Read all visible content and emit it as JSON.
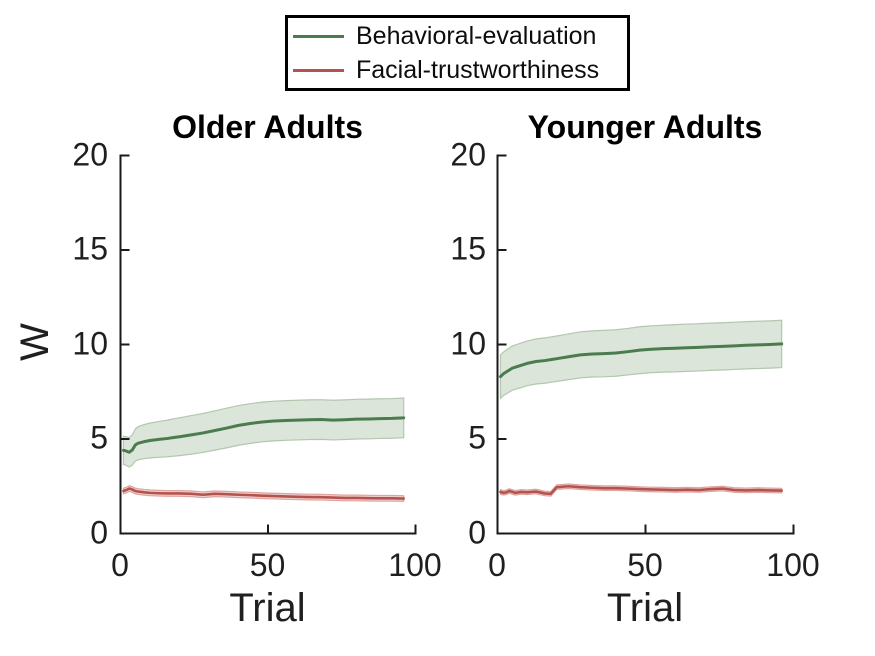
{
  "figure": {
    "background": "#ffffff",
    "axis_color": "#1a1a1a",
    "text_color": "#1f1f1f"
  },
  "legend": {
    "position": "top-center",
    "items": [
      {
        "label": "Behavioral-evaluation",
        "color": "#4a7c4e"
      },
      {
        "label": "Facial-trustworthiness",
        "color": "#b4534e"
      }
    ]
  },
  "chart_data": [
    {
      "type": "line",
      "title": "Older Adults",
      "xlabel": "Trial",
      "ylabel": "W",
      "xlim": [
        0,
        100
      ],
      "ylim": [
        0,
        20
      ],
      "xticks": [
        0,
        50,
        100
      ],
      "yticks": [
        0,
        5,
        10,
        15,
        20
      ],
      "grid": false,
      "x": [
        1,
        2,
        3,
        4,
        5,
        6,
        8,
        10,
        13,
        16,
        18,
        20,
        24,
        28,
        32,
        36,
        40,
        44,
        48,
        52,
        56,
        60,
        64,
        68,
        72,
        76,
        80,
        84,
        88,
        92,
        96
      ],
      "series": [
        {
          "name": "Behavioral-evaluation",
          "color": "#4a7c4e",
          "band_fill": "#dbe5d9",
          "band_edge": "#b3c7af",
          "y": [
            4.4,
            4.36,
            4.3,
            4.42,
            4.68,
            4.78,
            4.86,
            4.92,
            4.98,
            5.03,
            5.08,
            5.12,
            5.22,
            5.32,
            5.45,
            5.58,
            5.72,
            5.82,
            5.9,
            5.95,
            5.98,
            6.0,
            6.02,
            6.03,
            6.0,
            6.02,
            6.05,
            6.06,
            6.08,
            6.09,
            6.12
          ],
          "upper": [
            5.15,
            5.12,
            5.08,
            5.22,
            5.53,
            5.66,
            5.76,
            5.84,
            5.93,
            6.0,
            6.07,
            6.12,
            6.24,
            6.35,
            6.49,
            6.63,
            6.77,
            6.87,
            6.95,
            7.0,
            7.03,
            7.05,
            7.07,
            7.08,
            7.05,
            7.07,
            7.1,
            7.11,
            7.13,
            7.14,
            7.17
          ],
          "lower": [
            3.65,
            3.6,
            3.52,
            3.62,
            3.83,
            3.9,
            3.96,
            4.0,
            4.03,
            4.06,
            4.09,
            4.12,
            4.2,
            4.29,
            4.41,
            4.53,
            4.67,
            4.77,
            4.85,
            4.9,
            4.93,
            4.95,
            4.97,
            4.98,
            4.95,
            4.97,
            5.0,
            5.01,
            5.03,
            5.04,
            5.07
          ]
        },
        {
          "name": "Facial-trustworthiness",
          "color": "#b4534e",
          "band_fill": "#f0d2d0",
          "band_edge": "#dfa49f",
          "y": [
            2.25,
            2.3,
            2.38,
            2.33,
            2.25,
            2.22,
            2.18,
            2.15,
            2.13,
            2.12,
            2.12,
            2.12,
            2.1,
            2.05,
            2.1,
            2.08,
            2.05,
            2.03,
            2.0,
            1.98,
            1.96,
            1.94,
            1.93,
            1.92,
            1.9,
            1.88,
            1.88,
            1.87,
            1.86,
            1.86,
            1.85
          ],
          "upper": [
            2.4,
            2.45,
            2.53,
            2.48,
            2.4,
            2.37,
            2.33,
            2.3,
            2.28,
            2.27,
            2.27,
            2.27,
            2.25,
            2.2,
            2.25,
            2.23,
            2.2,
            2.18,
            2.15,
            2.13,
            2.11,
            2.09,
            2.08,
            2.07,
            2.05,
            2.03,
            2.03,
            2.02,
            2.01,
            2.01,
            2.0
          ],
          "lower": [
            2.1,
            2.15,
            2.23,
            2.18,
            2.1,
            2.07,
            2.03,
            2.0,
            1.98,
            1.97,
            1.97,
            1.97,
            1.95,
            1.9,
            1.95,
            1.93,
            1.9,
            1.88,
            1.85,
            1.83,
            1.81,
            1.79,
            1.78,
            1.77,
            1.75,
            1.73,
            1.73,
            1.72,
            1.71,
            1.71,
            1.7
          ]
        }
      ]
    },
    {
      "type": "line",
      "title": "Younger Adults",
      "xlabel": "Trial",
      "ylabel": "",
      "xlim": [
        0,
        100
      ],
      "ylim": [
        0,
        20
      ],
      "xticks": [
        0,
        50,
        100
      ],
      "yticks": [
        0,
        5,
        10,
        15,
        20
      ],
      "grid": false,
      "x": [
        1,
        2,
        3,
        4,
        5,
        6,
        8,
        10,
        13,
        16,
        18,
        20,
        24,
        28,
        32,
        36,
        40,
        44,
        48,
        52,
        56,
        60,
        64,
        68,
        72,
        76,
        80,
        84,
        88,
        92,
        96
      ],
      "series": [
        {
          "name": "Behavioral-evaluation",
          "color": "#4a7c4e",
          "band_fill": "#dbe5d9",
          "band_edge": "#b3c7af",
          "y": [
            8.3,
            8.45,
            8.55,
            8.65,
            8.75,
            8.8,
            8.9,
            9.0,
            9.1,
            9.15,
            9.2,
            9.25,
            9.35,
            9.45,
            9.5,
            9.52,
            9.55,
            9.62,
            9.7,
            9.75,
            9.78,
            9.8,
            9.83,
            9.85,
            9.88,
            9.9,
            9.93,
            9.96,
            9.98,
            10.0,
            10.03
          ],
          "upper": [
            9.45,
            9.6,
            9.71,
            9.81,
            9.92,
            9.97,
            10.08,
            10.18,
            10.29,
            10.35,
            10.4,
            10.45,
            10.56,
            10.67,
            10.72,
            10.75,
            10.78,
            10.85,
            10.94,
            10.99,
            11.02,
            11.05,
            11.08,
            11.1,
            11.13,
            11.15,
            11.18,
            11.21,
            11.23,
            11.25,
            11.28
          ],
          "lower": [
            7.15,
            7.3,
            7.39,
            7.49,
            7.58,
            7.63,
            7.72,
            7.82,
            7.91,
            7.95,
            8.0,
            8.05,
            8.14,
            8.23,
            8.28,
            8.29,
            8.32,
            8.39,
            8.46,
            8.51,
            8.54,
            8.55,
            8.58,
            8.6,
            8.63,
            8.65,
            8.68,
            8.71,
            8.73,
            8.75,
            8.78
          ]
        },
        {
          "name": "Facial-trustworthiness",
          "color": "#b4534e",
          "band_fill": "#f0d2d0",
          "band_edge": "#dfa49f",
          "y": [
            2.2,
            2.15,
            2.18,
            2.25,
            2.2,
            2.15,
            2.2,
            2.18,
            2.22,
            2.12,
            2.1,
            2.45,
            2.5,
            2.45,
            2.42,
            2.4,
            2.4,
            2.38,
            2.35,
            2.33,
            2.32,
            2.3,
            2.32,
            2.3,
            2.35,
            2.38,
            2.3,
            2.28,
            2.3,
            2.28,
            2.27
          ],
          "upper": [
            2.32,
            2.27,
            2.3,
            2.37,
            2.32,
            2.27,
            2.32,
            2.3,
            2.34,
            2.24,
            2.22,
            2.57,
            2.62,
            2.57,
            2.54,
            2.52,
            2.52,
            2.5,
            2.47,
            2.45,
            2.44,
            2.42,
            2.44,
            2.42,
            2.47,
            2.5,
            2.42,
            2.4,
            2.42,
            2.4,
            2.39
          ],
          "lower": [
            2.08,
            2.03,
            2.06,
            2.13,
            2.08,
            2.03,
            2.08,
            2.06,
            2.1,
            2.0,
            1.98,
            2.33,
            2.38,
            2.33,
            2.3,
            2.28,
            2.28,
            2.26,
            2.23,
            2.21,
            2.2,
            2.18,
            2.2,
            2.18,
            2.23,
            2.26,
            2.18,
            2.16,
            2.18,
            2.16,
            2.15
          ]
        }
      ]
    }
  ]
}
